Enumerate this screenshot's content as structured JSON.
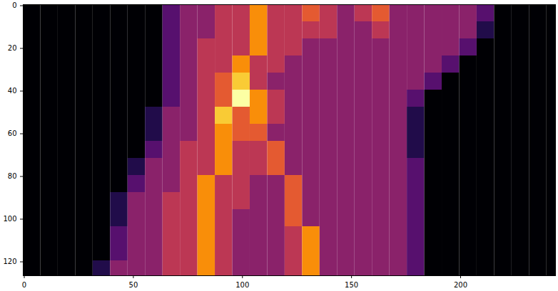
{
  "chart_data": {
    "type": "heatmap",
    "x_edges": [
      -0.5,
      7.5,
      15.5,
      23.5,
      31.5,
      39.5,
      47.5,
      55.5,
      63.5,
      71.5,
      79.5,
      87.5,
      95.5,
      103.5,
      111.5,
      119.5,
      127.5,
      135.5,
      143.5,
      151.5,
      159.5,
      167.5,
      175.5,
      183.5,
      191.5,
      199.5,
      207.5,
      215.5,
      223.5,
      231.5,
      239.5,
      243.5
    ],
    "y_edges": [
      -0.5,
      7.5,
      15.5,
      23.5,
      31.5,
      39.5,
      47.5,
      55.5,
      63.5,
      71.5,
      79.5,
      87.5,
      95.5,
      103.5,
      111.5,
      119.5,
      126.5
    ],
    "cells": [
      [
        1,
        1,
        1,
        1,
        1,
        1,
        1,
        1,
        3,
        4,
        4,
        5,
        5,
        7,
        5,
        5,
        6,
        5,
        4,
        5,
        6,
        4,
        4,
        4,
        4,
        4,
        3,
        1,
        1,
        1,
        1
      ],
      [
        1,
        1,
        1,
        1,
        1,
        1,
        1,
        1,
        3,
        4,
        4,
        5,
        5,
        7,
        5,
        5,
        5,
        5,
        4,
        4,
        5,
        4,
        4,
        4,
        4,
        4,
        2,
        1,
        1,
        1,
        1
      ],
      [
        1,
        1,
        1,
        1,
        1,
        1,
        1,
        1,
        3,
        4,
        5,
        5,
        5,
        7,
        5,
        5,
        4,
        4,
        4,
        4,
        4,
        4,
        4,
        4,
        4,
        3,
        1,
        1,
        1,
        1,
        1
      ],
      [
        1,
        1,
        1,
        1,
        1,
        1,
        1,
        1,
        3,
        4,
        5,
        5,
        7,
        5,
        5,
        4,
        4,
        4,
        4,
        4,
        4,
        4,
        4,
        4,
        3,
        1,
        1,
        1,
        1,
        1,
        1
      ],
      [
        1,
        1,
        1,
        1,
        1,
        1,
        1,
        1,
        3,
        4,
        5,
        6,
        8,
        5,
        4,
        4,
        4,
        4,
        4,
        4,
        4,
        4,
        4,
        3,
        1,
        1,
        1,
        1,
        1,
        1,
        1
      ],
      [
        1,
        1,
        1,
        1,
        1,
        1,
        1,
        1,
        3,
        4,
        5,
        6,
        9,
        7,
        5,
        4,
        4,
        4,
        4,
        4,
        4,
        4,
        3,
        1,
        1,
        1,
        1,
        1,
        1,
        1,
        1
      ],
      [
        1,
        1,
        1,
        1,
        1,
        1,
        1,
        2,
        4,
        4,
        5,
        8,
        6,
        7,
        5,
        4,
        4,
        4,
        4,
        4,
        4,
        4,
        2,
        1,
        1,
        1,
        1,
        1,
        1,
        1,
        1
      ],
      [
        1,
        1,
        1,
        1,
        1,
        1,
        1,
        2,
        4,
        4,
        5,
        7,
        6,
        6,
        4,
        4,
        4,
        4,
        4,
        4,
        4,
        4,
        2,
        1,
        1,
        1,
        1,
        1,
        1,
        1,
        1
      ],
      [
        1,
        1,
        1,
        1,
        1,
        1,
        1,
        3,
        4,
        5,
        5,
        7,
        5,
        5,
        6,
        4,
        4,
        4,
        4,
        4,
        4,
        4,
        2,
        1,
        1,
        1,
        1,
        1,
        1,
        1,
        1
      ],
      [
        1,
        1,
        1,
        1,
        1,
        1,
        2,
        4,
        4,
        5,
        5,
        7,
        5,
        5,
        6,
        4,
        4,
        4,
        4,
        4,
        4,
        4,
        3,
        1,
        1,
        1,
        1,
        1,
        1,
        1,
        1
      ],
      [
        1,
        1,
        1,
        1,
        1,
        1,
        3,
        4,
        4,
        5,
        7,
        5,
        5,
        4,
        4,
        6,
        4,
        4,
        4,
        4,
        4,
        4,
        3,
        1,
        1,
        1,
        1,
        1,
        1,
        1,
        1
      ],
      [
        1,
        1,
        1,
        1,
        1,
        2,
        4,
        4,
        5,
        5,
        7,
        5,
        5,
        4,
        4,
        6,
        4,
        4,
        4,
        4,
        4,
        4,
        3,
        1,
        1,
        1,
        1,
        1,
        1,
        1,
        1
      ],
      [
        1,
        1,
        1,
        1,
        1,
        2,
        4,
        4,
        5,
        5,
        7,
        5,
        4,
        4,
        4,
        6,
        4,
        4,
        4,
        4,
        4,
        4,
        3,
        1,
        1,
        1,
        1,
        1,
        1,
        1,
        1
      ],
      [
        1,
        1,
        1,
        1,
        1,
        3,
        4,
        4,
        5,
        5,
        7,
        5,
        4,
        4,
        4,
        5,
        7,
        4,
        4,
        4,
        4,
        4,
        3,
        1,
        1,
        1,
        1,
        1,
        1,
        1,
        1
      ],
      [
        1,
        1,
        1,
        1,
        1,
        3,
        4,
        4,
        5,
        5,
        7,
        5,
        4,
        4,
        4,
        5,
        7,
        4,
        4,
        4,
        4,
        4,
        3,
        1,
        1,
        1,
        1,
        1,
        1,
        1,
        1
      ],
      [
        1,
        1,
        1,
        1,
        2,
        4,
        4,
        4,
        5,
        5,
        7,
        5,
        4,
        4,
        4,
        5,
        7,
        4,
        4,
        4,
        4,
        4,
        3,
        1,
        1,
        1,
        1,
        1,
        1,
        1,
        1
      ]
    ],
    "xlim": [
      -0.5,
      243.5
    ],
    "ylim": [
      126.5,
      -0.5
    ],
    "xticks": [
      0,
      50,
      100,
      150,
      200
    ],
    "yticks": [
      0,
      20,
      40,
      60,
      80,
      100,
      120
    ],
    "color": "inferno",
    "grid": false
  }
}
